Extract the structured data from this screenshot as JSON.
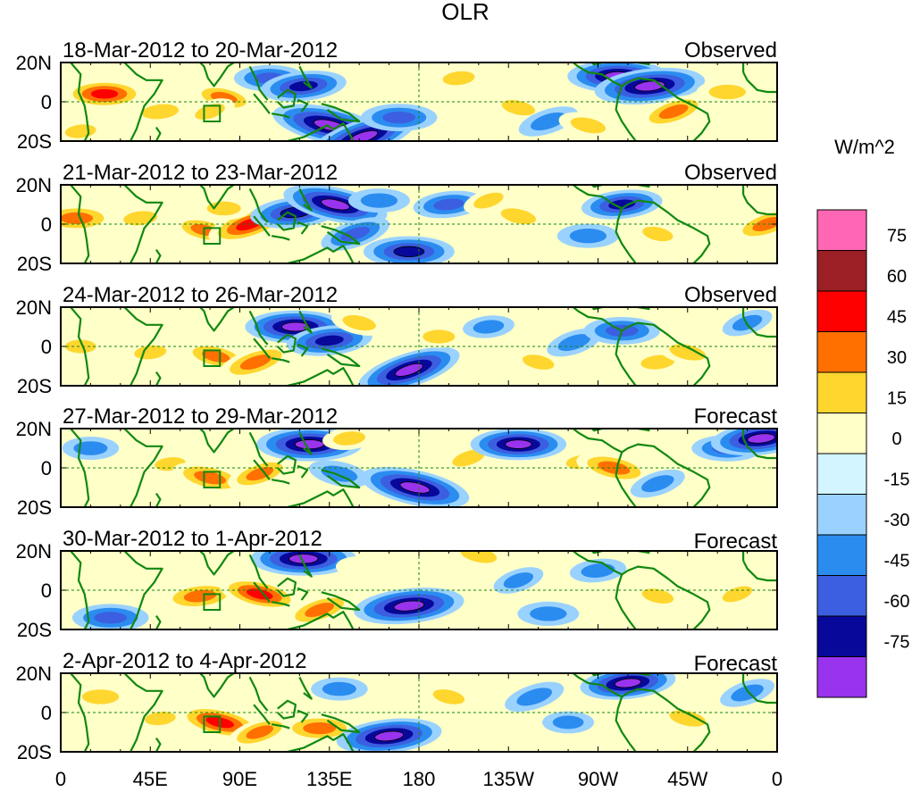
{
  "chart_data": {
    "type": "heatmap",
    "title": "OLR",
    "units_label": "W/m^2",
    "x_tick_labels": [
      "0",
      "45E",
      "90E",
      "135E",
      "180",
      "135W",
      "90W",
      "45W",
      "0"
    ],
    "y_tick_labels": [
      "20N",
      "0",
      "20S"
    ],
    "xlim": [
      0,
      360
    ],
    "ylim": [
      -20,
      20
    ],
    "colorbar": {
      "levels": [
        75,
        60,
        45,
        30,
        15,
        0,
        -15,
        -30,
        -45,
        -60,
        -75
      ],
      "colors": [
        "#ff66b3",
        "#9b1f24",
        "#ff0000",
        "#ff7000",
        "#ffd62e",
        "#ffffc8",
        "#d2f5ff",
        "#9ad2ff",
        "#2b8cf0",
        "#3b5fe0",
        "#08089a",
        "#9933ee"
      ]
    },
    "panels": [
      {
        "period": "18-Mar-2012 to 20-Mar-2012",
        "kind": "Observed",
        "features": [
          {
            "lon": 22,
            "lat": 4,
            "v": 50
          },
          {
            "lon": 50,
            "lat": -5,
            "v": 30
          },
          {
            "lon": 82,
            "lat": 2,
            "v": 32
          },
          {
            "lon": 75,
            "lat": -5,
            "v": 20
          },
          {
            "lon": 105,
            "lat": 12,
            "v": -40
          },
          {
            "lon": 122,
            "lat": 8,
            "v": -55
          },
          {
            "lon": 135,
            "lat": -12,
            "v": -85
          },
          {
            "lon": 152,
            "lat": -18,
            "v": -80
          },
          {
            "lon": 170,
            "lat": -8,
            "v": -45
          },
          {
            "lon": 200,
            "lat": 12,
            "v": 22
          },
          {
            "lon": 230,
            "lat": -3,
            "v": 25
          },
          {
            "lon": 245,
            "lat": -10,
            "v": -30
          },
          {
            "lon": 280,
            "lat": 13,
            "v": -70
          },
          {
            "lon": 296,
            "lat": 8,
            "v": -80
          },
          {
            "lon": 265,
            "lat": -12,
            "v": 28
          },
          {
            "lon": 308,
            "lat": -5,
            "v": 40
          },
          {
            "lon": 335,
            "lat": 5,
            "v": 30
          },
          {
            "lon": 10,
            "lat": -15,
            "v": 20
          }
        ]
      },
      {
        "period": "21-Mar-2012 to 23-Mar-2012",
        "kind": "Observed",
        "features": [
          {
            "lon": 8,
            "lat": 3,
            "v": 45
          },
          {
            "lon": 40,
            "lat": 3,
            "v": 25
          },
          {
            "lon": 72,
            "lat": -3,
            "v": 32
          },
          {
            "lon": 95,
            "lat": 0,
            "v": 55
          },
          {
            "lon": 82,
            "lat": 8,
            "v": 25
          },
          {
            "lon": 118,
            "lat": 6,
            "v": -60
          },
          {
            "lon": 138,
            "lat": 10,
            "v": -75
          },
          {
            "lon": 148,
            "lat": -5,
            "v": -40
          },
          {
            "lon": 175,
            "lat": -14,
            "v": -60
          },
          {
            "lon": 195,
            "lat": 10,
            "v": -40
          },
          {
            "lon": 230,
            "lat": 4,
            "v": 28
          },
          {
            "lon": 215,
            "lat": 12,
            "v": 20
          },
          {
            "lon": 265,
            "lat": -6,
            "v": -30
          },
          {
            "lon": 282,
            "lat": 10,
            "v": -50
          },
          {
            "lon": 300,
            "lat": -5,
            "v": 20
          },
          {
            "lon": 355,
            "lat": 0,
            "v": 40
          },
          {
            "lon": 160,
            "lat": 12,
            "v": -30
          }
        ]
      },
      {
        "period": "24-Mar-2012 to 26-Mar-2012",
        "kind": "Observed",
        "features": [
          {
            "lon": 10,
            "lat": 0,
            "v": 20
          },
          {
            "lon": 45,
            "lat": -3,
            "v": 22
          },
          {
            "lon": 78,
            "lat": -5,
            "v": 35
          },
          {
            "lon": 98,
            "lat": -8,
            "v": 45
          },
          {
            "lon": 118,
            "lat": 10,
            "v": -70
          },
          {
            "lon": 135,
            "lat": 3,
            "v": -55
          },
          {
            "lon": 150,
            "lat": 12,
            "v": 25
          },
          {
            "lon": 175,
            "lat": -12,
            "v": -75
          },
          {
            "lon": 190,
            "lat": 5,
            "v": 22
          },
          {
            "lon": 215,
            "lat": 10,
            "v": -20
          },
          {
            "lon": 240,
            "lat": -8,
            "v": 22
          },
          {
            "lon": 258,
            "lat": 2,
            "v": -25
          },
          {
            "lon": 282,
            "lat": 8,
            "v": -45
          },
          {
            "lon": 300,
            "lat": -8,
            "v": 25
          },
          {
            "lon": 315,
            "lat": -3,
            "v": 30
          },
          {
            "lon": 345,
            "lat": 12,
            "v": -20
          }
        ]
      },
      {
        "period": "27-Mar-2012 to 29-Mar-2012",
        "kind": "Forecast",
        "features": [
          {
            "lon": 15,
            "lat": 10,
            "v": -25
          },
          {
            "lon": 55,
            "lat": 2,
            "v": 20
          },
          {
            "lon": 75,
            "lat": -5,
            "v": 45
          },
          {
            "lon": 100,
            "lat": -3,
            "v": 35
          },
          {
            "lon": 125,
            "lat": 12,
            "v": -75
          },
          {
            "lon": 145,
            "lat": 15,
            "v": 22
          },
          {
            "lon": 178,
            "lat": -10,
            "v": -80
          },
          {
            "lon": 205,
            "lat": 5,
            "v": 25
          },
          {
            "lon": 230,
            "lat": 12,
            "v": -65
          },
          {
            "lon": 262,
            "lat": 3,
            "v": 22
          },
          {
            "lon": 278,
            "lat": 0,
            "v": 45
          },
          {
            "lon": 300,
            "lat": -8,
            "v": -25
          },
          {
            "lon": 335,
            "lat": 10,
            "v": -40
          },
          {
            "lon": 352,
            "lat": 15,
            "v": -70
          },
          {
            "lon": 140,
            "lat": -3,
            "v": -30
          }
        ]
      },
      {
        "period": "30-Mar-2012 to 1-Apr-2012",
        "kind": "Forecast",
        "features": [
          {
            "lon": 25,
            "lat": -14,
            "v": -45
          },
          {
            "lon": 70,
            "lat": -3,
            "v": 45
          },
          {
            "lon": 100,
            "lat": -2,
            "v": 50
          },
          {
            "lon": 130,
            "lat": -10,
            "v": 40
          },
          {
            "lon": 122,
            "lat": 16,
            "v": -75
          },
          {
            "lon": 175,
            "lat": -8,
            "v": -80
          },
          {
            "lon": 210,
            "lat": 18,
            "v": 30
          },
          {
            "lon": 230,
            "lat": 5,
            "v": -20
          },
          {
            "lon": 245,
            "lat": -12,
            "v": -30
          },
          {
            "lon": 270,
            "lat": 10,
            "v": -25
          },
          {
            "lon": 300,
            "lat": -3,
            "v": 22
          },
          {
            "lon": 340,
            "lat": -2,
            "v": 20
          },
          {
            "lon": 150,
            "lat": 12,
            "v": 15
          }
        ]
      },
      {
        "period": "2-Apr-2012 to 4-Apr-2012",
        "kind": "Forecast",
        "features": [
          {
            "lon": 20,
            "lat": 8,
            "v": 30
          },
          {
            "lon": 50,
            "lat": -3,
            "v": 20
          },
          {
            "lon": 80,
            "lat": -5,
            "v": 55
          },
          {
            "lon": 100,
            "lat": -10,
            "v": 35
          },
          {
            "lon": 130,
            "lat": -8,
            "v": 45
          },
          {
            "lon": 165,
            "lat": -12,
            "v": -75
          },
          {
            "lon": 195,
            "lat": 8,
            "v": 22
          },
          {
            "lon": 238,
            "lat": 8,
            "v": -30
          },
          {
            "lon": 255,
            "lat": -5,
            "v": -20
          },
          {
            "lon": 285,
            "lat": 15,
            "v": -65
          },
          {
            "lon": 315,
            "lat": -3,
            "v": 30
          },
          {
            "lon": 345,
            "lat": 10,
            "v": -25
          },
          {
            "lon": 140,
            "lat": 12,
            "v": -25
          }
        ]
      }
    ]
  }
}
